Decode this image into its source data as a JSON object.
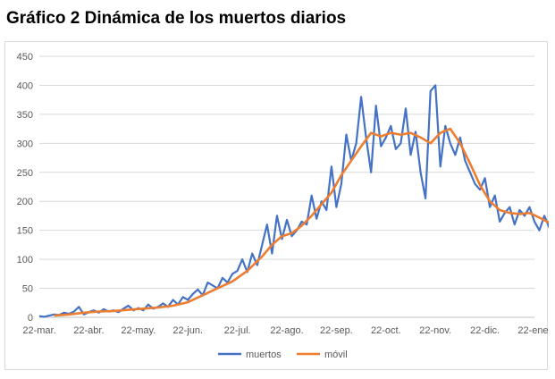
{
  "title": "Gráfico 2 Dinámica de los muertos diarios",
  "chart_data": {
    "type": "line",
    "title": "Gráfico 2 Dinámica de los muertos diarios",
    "xlabel": "",
    "ylabel": "",
    "ylim": [
      0,
      450
    ],
    "yticks": [
      0,
      50,
      100,
      150,
      200,
      250,
      300,
      350,
      400,
      450
    ],
    "xticks": [
      "22-mar.",
      "22-abr.",
      "22-may.",
      "22-jun.",
      "22-jul.",
      "22-ago.",
      "22-sep.",
      "22-oct.",
      "22-nov.",
      "22-dic.",
      "22-ene."
    ],
    "grid": true,
    "legend_position": "bottom",
    "x_unit": "months since 22-mar.",
    "series": [
      {
        "name": "muertos",
        "color": "#4472c4",
        "points": [
          [
            0.0,
            2
          ],
          [
            0.1,
            1
          ],
          [
            0.2,
            3
          ],
          [
            0.3,
            5
          ],
          [
            0.4,
            4
          ],
          [
            0.5,
            8
          ],
          [
            0.6,
            6
          ],
          [
            0.7,
            10
          ],
          [
            0.8,
            18
          ],
          [
            0.9,
            5
          ],
          [
            1.0,
            9
          ],
          [
            1.1,
            12
          ],
          [
            1.2,
            8
          ],
          [
            1.3,
            14
          ],
          [
            1.4,
            10
          ],
          [
            1.5,
            12
          ],
          [
            1.6,
            9
          ],
          [
            1.7,
            15
          ],
          [
            1.8,
            20
          ],
          [
            1.9,
            12
          ],
          [
            2.0,
            16
          ],
          [
            2.1,
            12
          ],
          [
            2.2,
            22
          ],
          [
            2.3,
            15
          ],
          [
            2.4,
            18
          ],
          [
            2.5,
            24
          ],
          [
            2.6,
            18
          ],
          [
            2.7,
            30
          ],
          [
            2.8,
            22
          ],
          [
            2.9,
            35
          ],
          [
            3.0,
            30
          ],
          [
            3.1,
            40
          ],
          [
            3.2,
            48
          ],
          [
            3.3,
            38
          ],
          [
            3.4,
            60
          ],
          [
            3.5,
            55
          ],
          [
            3.6,
            50
          ],
          [
            3.7,
            68
          ],
          [
            3.8,
            60
          ],
          [
            3.9,
            75
          ],
          [
            4.0,
            80
          ],
          [
            4.1,
            100
          ],
          [
            4.2,
            78
          ],
          [
            4.3,
            110
          ],
          [
            4.4,
            90
          ],
          [
            4.5,
            125
          ],
          [
            4.6,
            160
          ],
          [
            4.7,
            110
          ],
          [
            4.8,
            175
          ],
          [
            4.9,
            135
          ],
          [
            5.0,
            168
          ],
          [
            5.1,
            140
          ],
          [
            5.2,
            150
          ],
          [
            5.3,
            165
          ],
          [
            5.4,
            160
          ],
          [
            5.5,
            210
          ],
          [
            5.6,
            170
          ],
          [
            5.7,
            200
          ],
          [
            5.8,
            185
          ],
          [
            5.9,
            260
          ],
          [
            6.0,
            190
          ],
          [
            6.1,
            230
          ],
          [
            6.2,
            315
          ],
          [
            6.3,
            270
          ],
          [
            6.4,
            300
          ],
          [
            6.5,
            380
          ],
          [
            6.6,
            310
          ],
          [
            6.7,
            250
          ],
          [
            6.8,
            365
          ],
          [
            6.9,
            295
          ],
          [
            7.0,
            310
          ],
          [
            7.1,
            330
          ],
          [
            7.2,
            290
          ],
          [
            7.3,
            300
          ],
          [
            7.4,
            360
          ],
          [
            7.5,
            280
          ],
          [
            7.6,
            320
          ],
          [
            7.7,
            250
          ],
          [
            7.8,
            205
          ],
          [
            7.9,
            390
          ],
          [
            8.0,
            400
          ],
          [
            8.1,
            260
          ],
          [
            8.2,
            330
          ],
          [
            8.3,
            300
          ],
          [
            8.4,
            280
          ],
          [
            8.5,
            310
          ],
          [
            8.6,
            270
          ],
          [
            8.7,
            250
          ],
          [
            8.8,
            230
          ],
          [
            8.9,
            220
          ],
          [
            9.0,
            240
          ],
          [
            9.1,
            190
          ],
          [
            9.2,
            210
          ],
          [
            9.3,
            165
          ],
          [
            9.4,
            180
          ],
          [
            9.5,
            190
          ],
          [
            9.6,
            160
          ],
          [
            9.7,
            185
          ],
          [
            9.8,
            175
          ],
          [
            9.9,
            190
          ],
          [
            10.0,
            165
          ],
          [
            10.1,
            150
          ],
          [
            10.2,
            175
          ],
          [
            10.3,
            155
          ],
          [
            10.4,
            180
          ],
          [
            10.5,
            150
          ],
          [
            10.6,
            170
          ],
          [
            10.7,
            160
          ],
          [
            10.8,
            190
          ],
          [
            10.9,
            140
          ],
          [
            11.0,
            170
          ],
          [
            11.1,
            160
          ],
          [
            11.2,
            190
          ],
          [
            11.3,
            160
          ],
          [
            11.4,
            210
          ],
          [
            11.5,
            175
          ],
          [
            11.6,
            200
          ],
          [
            11.7,
            165
          ],
          [
            11.8,
            195
          ],
          [
            11.9,
            155
          ],
          [
            12.0,
            180
          ],
          [
            12.1,
            190
          ],
          [
            12.2,
            165
          ],
          [
            12.3,
            200
          ],
          [
            12.4,
            160
          ],
          [
            12.5,
            180
          ],
          [
            12.6,
            165
          ],
          [
            12.7,
            195
          ],
          [
            12.8,
            160
          ],
          [
            12.9,
            185
          ],
          [
            13.0,
            170
          ],
          [
            13.1,
            195
          ],
          [
            13.2,
            165
          ],
          [
            13.3,
            185
          ],
          [
            13.4,
            155
          ],
          [
            13.5,
            175
          ],
          [
            13.6,
            195
          ],
          [
            13.7,
            165
          ],
          [
            13.8,
            180
          ],
          [
            13.9,
            200
          ],
          [
            14.0,
            165
          ],
          [
            14.1,
            185
          ],
          [
            14.2,
            170
          ],
          [
            14.3,
            160
          ],
          [
            14.4,
            180
          ],
          [
            14.5,
            195
          ],
          [
            14.6,
            140
          ],
          [
            14.7,
            180
          ],
          [
            14.8,
            170
          ],
          [
            14.9,
            230
          ],
          [
            15.0,
            240
          ],
          [
            15.1,
            200
          ],
          [
            15.2,
            260
          ],
          [
            15.3,
            280
          ],
          [
            15.4,
            240
          ],
          [
            15.5,
            260
          ],
          [
            15.6,
            230
          ],
          [
            15.7,
            270
          ],
          [
            15.8,
            240
          ],
          [
            15.9,
            300
          ],
          [
            16.0,
            260
          ],
          [
            16.1,
            200
          ],
          [
            16.2,
            245
          ],
          [
            16.3,
            330
          ],
          [
            16.4,
            365
          ],
          [
            16.5,
            330
          ],
          [
            16.6,
            345
          ],
          [
            16.7,
            330
          ],
          [
            16.8,
            375
          ],
          [
            16.9,
            370
          ],
          [
            17.0,
            395
          ],
          [
            17.1,
            385
          ],
          [
            17.2,
            395
          ],
          [
            17.3,
            400
          ],
          [
            17.4,
            395
          ],
          [
            17.5,
            375
          ],
          [
            17.6,
            385
          ]
        ]
      },
      {
        "name": "móvil",
        "color": "#ed7d31",
        "points": [
          [
            0.3,
            3
          ],
          [
            0.6,
            5
          ],
          [
            0.9,
            8
          ],
          [
            1.2,
            10
          ],
          [
            1.5,
            11
          ],
          [
            1.8,
            13
          ],
          [
            2.1,
            15
          ],
          [
            2.4,
            17
          ],
          [
            2.7,
            20
          ],
          [
            3.0,
            26
          ],
          [
            3.3,
            38
          ],
          [
            3.6,
            50
          ],
          [
            3.9,
            62
          ],
          [
            4.2,
            80
          ],
          [
            4.5,
            105
          ],
          [
            4.7,
            125
          ],
          [
            4.9,
            140
          ],
          [
            5.1,
            145
          ],
          [
            5.3,
            158
          ],
          [
            5.5,
            175
          ],
          [
            5.7,
            195
          ],
          [
            5.9,
            215
          ],
          [
            6.1,
            245
          ],
          [
            6.3,
            270
          ],
          [
            6.5,
            295
          ],
          [
            6.7,
            318
          ],
          [
            6.9,
            312
          ],
          [
            7.1,
            318
          ],
          [
            7.3,
            315
          ],
          [
            7.5,
            318
          ],
          [
            7.7,
            310
          ],
          [
            7.9,
            300
          ],
          [
            8.1,
            318
          ],
          [
            8.3,
            325
          ],
          [
            8.5,
            300
          ],
          [
            8.7,
            265
          ],
          [
            8.9,
            228
          ],
          [
            9.1,
            200
          ],
          [
            9.3,
            185
          ],
          [
            9.5,
            180
          ],
          [
            9.7,
            178
          ],
          [
            9.9,
            180
          ],
          [
            10.1,
            172
          ],
          [
            10.3,
            163
          ],
          [
            10.5,
            160
          ],
          [
            10.7,
            165
          ],
          [
            10.9,
            170
          ],
          [
            11.1,
            168
          ],
          [
            11.3,
            170
          ],
          [
            11.5,
            178
          ],
          [
            11.7,
            185
          ],
          [
            11.9,
            180
          ],
          [
            12.1,
            178
          ],
          [
            12.3,
            175
          ],
          [
            12.5,
            178
          ],
          [
            12.7,
            180
          ],
          [
            12.9,
            178
          ],
          [
            13.1,
            175
          ],
          [
            13.3,
            175
          ],
          [
            13.5,
            176
          ],
          [
            13.7,
            178
          ],
          [
            13.9,
            180
          ],
          [
            14.1,
            178
          ],
          [
            14.3,
            175
          ],
          [
            14.5,
            172
          ],
          [
            14.7,
            170
          ],
          [
            14.9,
            180
          ],
          [
            15.1,
            205
          ],
          [
            15.3,
            230
          ],
          [
            15.5,
            245
          ],
          [
            15.7,
            250
          ],
          [
            15.9,
            258
          ],
          [
            16.1,
            260
          ],
          [
            16.3,
            275
          ],
          [
            16.5,
            335
          ],
          [
            16.7,
            352
          ],
          [
            16.9,
            365
          ],
          [
            17.1,
            378
          ],
          [
            17.3,
            388
          ],
          [
            17.5,
            392
          ],
          [
            17.6,
            388
          ]
        ]
      }
    ]
  }
}
